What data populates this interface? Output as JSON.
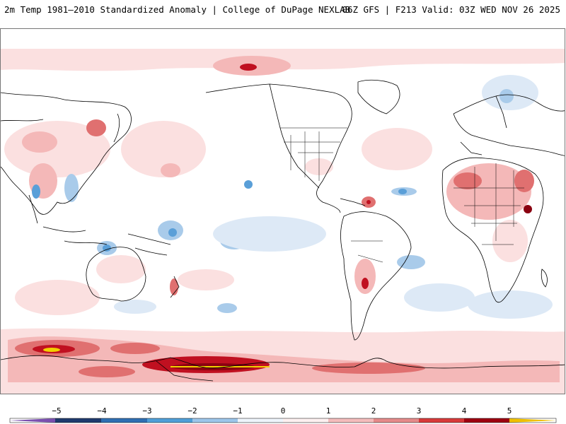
{
  "header": {
    "title_left": "2m Temp 1981–2010 Standardized Anomaly | College of DuPage NEXLAB",
    "title_right": "06Z GFS | F213 Valid: 03Z WED NOV 26 2025"
  },
  "colorbar": {
    "tick_labels": [
      "−5",
      "−4",
      "−3",
      "−2",
      "−1",
      "0",
      "1",
      "2",
      "3",
      "4",
      "5"
    ],
    "colors": {
      "neg5": "#7a4fb0",
      "neg4": "#1f3a6e",
      "neg3": "#2f6fb3",
      "neg2": "#4f9fd8",
      "neg1": "#9cc6ea",
      "neg0": "#dfeaf6",
      "pos0": "#fbe3e3",
      "pos1": "#f4bcbc",
      "pos2": "#e58a8a",
      "pos3": "#d83a3a",
      "pos4": "#9e0010",
      "pos5": "#f0c000"
    }
  },
  "map": {
    "land_outline_color": "#000000",
    "colors": {
      "light_red": "#fbe0e0",
      "med_red": "#f4b8b8",
      "red": "#e07070",
      "dark_red": "#c01020",
      "deep_red": "#8a0010",
      "yellow": "#f2d000",
      "light_blue": "#dde9f6",
      "med_blue": "#a9cbea",
      "blue": "#5a9fd8"
    }
  }
}
